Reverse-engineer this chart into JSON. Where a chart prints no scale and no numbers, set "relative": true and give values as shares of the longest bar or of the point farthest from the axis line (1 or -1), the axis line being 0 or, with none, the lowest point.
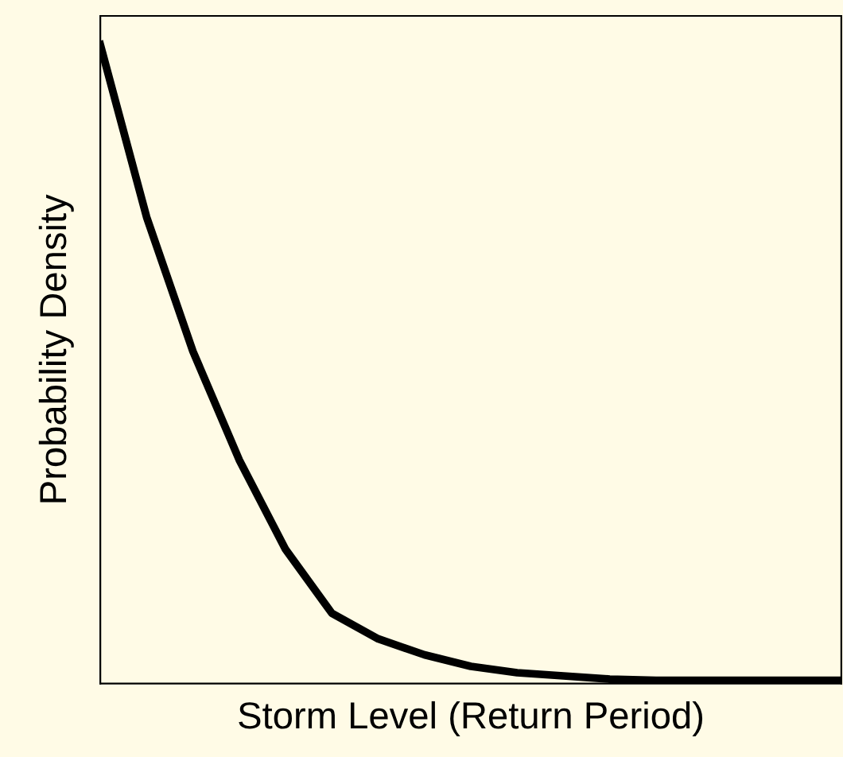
{
  "chart_data": {
    "type": "line",
    "relative": true,
    "xlabel": "Storm Level (Return Period)",
    "ylabel": "Probability Density",
    "categories": [
      null,
      null,
      null,
      null,
      null,
      null,
      null,
      null,
      null,
      null,
      null,
      null,
      null,
      null,
      null,
      null,
      null
    ],
    "series": [
      {
        "color": "#000000",
        "values": [
          1.0,
          0.73,
          0.52,
          0.35,
          0.21,
          0.11,
          0.07,
          0.045,
          0.027,
          0.017,
          0.012,
          0.007,
          0.005,
          0.005,
          0.005,
          0.005,
          0.005
        ]
      }
    ],
    "marker": "none",
    "line_style": "solid"
  }
}
